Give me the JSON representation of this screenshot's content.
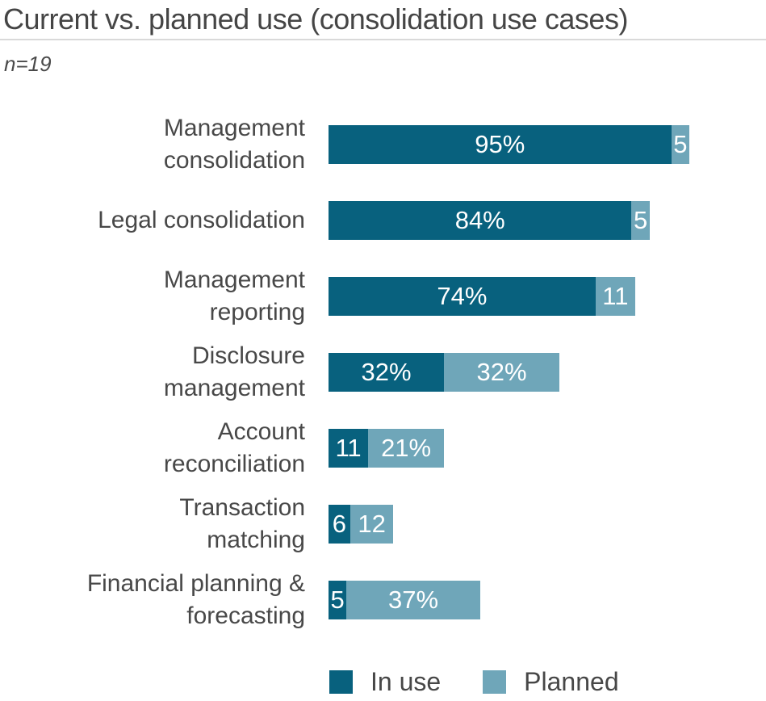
{
  "header": {
    "title": "Current vs. planned use (consolidation use cases)",
    "sample_note": "n=19"
  },
  "legend": {
    "in_use_label": "In use",
    "planned_label": "Planned"
  },
  "colors": {
    "in_use": "#08617E",
    "planned": "#6FA6B9",
    "text_gray": "#484848",
    "divider_gray": "#d9d9d9",
    "bar_label_white": "#ffffff"
  },
  "chart_data": {
    "type": "bar",
    "orientation": "horizontal",
    "stacked": true,
    "title": "Current vs. planned use (consolidation use cases)",
    "subtitle": "n=19",
    "xlabel": "",
    "ylabel": "",
    "xlim": [
      0,
      100
    ],
    "grid": false,
    "legend_position": "bottom",
    "categories": [
      "Management\nconsolidation",
      "Legal consolidation",
      "Management\nreporting",
      "Disclosure\nmanagement",
      "Account\nreconciliation",
      "Transaction\nmatching",
      "Financial planning &\nforecasting"
    ],
    "series": [
      {
        "name": "In use",
        "values": [
          95,
          84,
          74,
          32,
          11,
          6,
          5
        ],
        "labels": [
          "95%",
          "84%",
          "74%",
          "32%",
          "11",
          "6",
          "5"
        ]
      },
      {
        "name": "Planned",
        "values": [
          5,
          5,
          11,
          32,
          21,
          12,
          37
        ],
        "labels": [
          "5",
          "5",
          "11",
          "32%",
          "21%",
          "12",
          "37%"
        ]
      }
    ]
  }
}
